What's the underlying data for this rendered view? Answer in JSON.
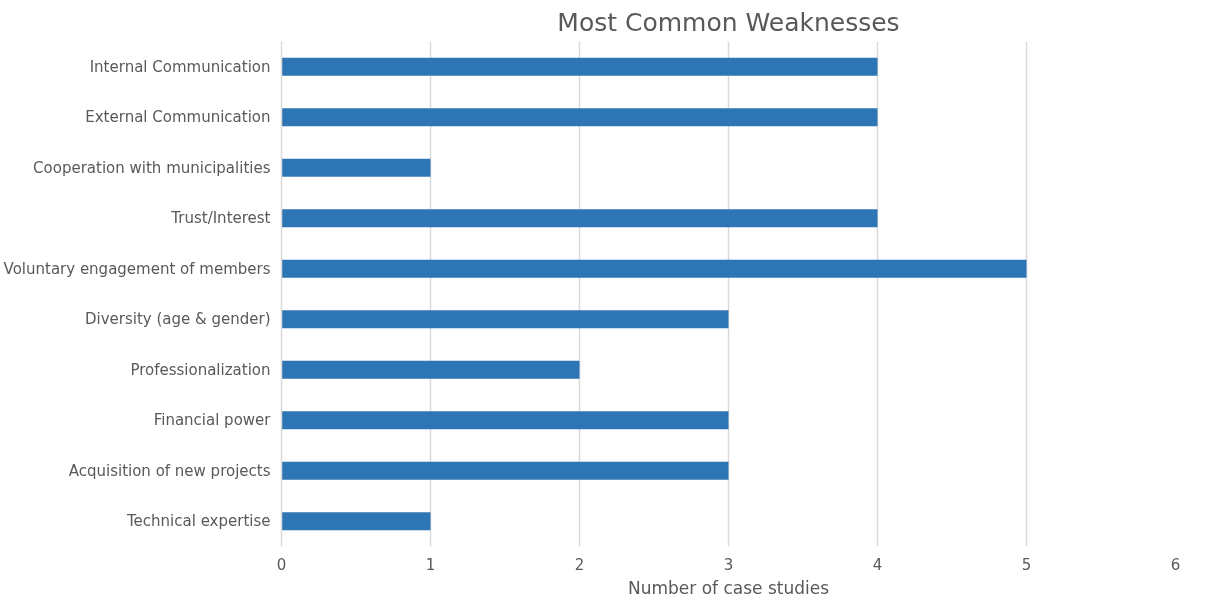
{
  "chart_data": {
    "type": "bar",
    "orientation": "horizontal",
    "title": "Most Common Weaknesses",
    "xlabel": "Number of case studies",
    "categories": [
      "Internal Communication",
      "External Communication",
      "Cooperation with municipalities",
      "Trust/Interest",
      "Voluntary engagement of members",
      "Diversity (age & gender)",
      "Professionalization",
      "Financial power",
      "Acquisition of new projects",
      "Technical expertise"
    ],
    "values": [
      4,
      4,
      1,
      4,
      5,
      3,
      2,
      3,
      3,
      1
    ],
    "color": "#2e75b6",
    "xlim": [
      0,
      6
    ],
    "xticks": [
      0,
      1,
      2,
      3,
      4,
      5,
      6
    ],
    "grid": "x"
  }
}
